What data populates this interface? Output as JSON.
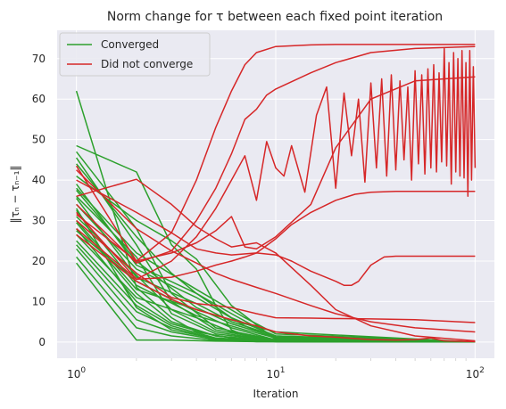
{
  "chart_data": {
    "type": "line",
    "title": "Norm change for τ between each fixed point iteration",
    "xlabel": "Iteration",
    "ylabel": "‖τₙ − τₙ₋₁‖",
    "xscale": "log",
    "xlim": [
      0.8,
      125
    ],
    "ylim": [
      -4,
      77
    ],
    "x_ticks": [
      {
        "value": 1,
        "base": "10",
        "exp": "0"
      },
      {
        "value": 10,
        "base": "10",
        "exp": "1"
      },
      {
        "value": 100,
        "base": "10",
        "exp": "2"
      }
    ],
    "y_ticks": [
      0,
      10,
      20,
      30,
      40,
      50,
      60,
      70
    ],
    "grid": true,
    "legend": {
      "placement": "top-left",
      "entries": [
        {
          "label": "Converged",
          "color": "#2ca02c"
        },
        {
          "label": "Did not converge",
          "color": "#d62728"
        }
      ]
    },
    "series": [
      {
        "group": "Converged",
        "x": [
          1,
          2,
          3,
          4,
          6,
          10,
          100
        ],
        "y": [
          62.0,
          13.5,
          6.0,
          2.5,
          1.0,
          0.2,
          0
        ]
      },
      {
        "group": "Converged",
        "x": [
          1,
          2,
          3,
          4,
          5,
          6,
          8,
          10,
          100
        ],
        "y": [
          48.5,
          42.0,
          24.0,
          18.0,
          9.0,
          3.0,
          0.5,
          0.1,
          0
        ]
      },
      {
        "group": "Converged",
        "x": [
          1,
          2,
          3,
          5,
          10,
          100
        ],
        "y": [
          47.0,
          28.0,
          12.0,
          3.5,
          0.5,
          0
        ]
      },
      {
        "group": "Converged",
        "x": [
          1,
          2,
          3,
          5,
          10,
          100
        ],
        "y": [
          45.5,
          24.0,
          10.0,
          3.0,
          0.3,
          0
        ]
      },
      {
        "group": "Converged",
        "x": [
          1,
          2,
          3,
          4,
          6,
          10,
          100
        ],
        "y": [
          41.0,
          30.0,
          25.0,
          20.5,
          9.0,
          0.6,
          0
        ]
      },
      {
        "group": "Converged",
        "x": [
          1,
          2,
          4,
          6,
          10,
          100
        ],
        "y": [
          39.0,
          19.0,
          12.0,
          7.0,
          1.0,
          0
        ]
      },
      {
        "group": "Converged",
        "x": [
          1,
          2,
          4,
          6,
          10,
          100
        ],
        "y": [
          37.5,
          20.0,
          8.5,
          4.5,
          1.2,
          0
        ]
      },
      {
        "group": "Converged",
        "x": [
          1,
          2,
          4,
          6,
          10,
          100
        ],
        "y": [
          35.5,
          16.0,
          9.5,
          5.0,
          1.5,
          0
        ]
      },
      {
        "group": "Converged",
        "x": [
          1,
          2,
          4,
          7,
          10,
          100
        ],
        "y": [
          34.0,
          18.0,
          11.0,
          4.0,
          0.8,
          0
        ]
      },
      {
        "group": "Converged",
        "x": [
          1,
          2,
          4,
          7,
          10,
          100
        ],
        "y": [
          32.5,
          14.0,
          6.5,
          3.0,
          1.0,
          0
        ]
      },
      {
        "group": "Converged",
        "x": [
          1,
          2,
          3,
          5,
          10,
          100
        ],
        "y": [
          31.0,
          16.5,
          8.0,
          2.5,
          0.2,
          0
        ]
      },
      {
        "group": "Converged",
        "x": [
          1,
          2,
          3,
          5,
          10,
          100
        ],
        "y": [
          29.5,
          12.0,
          5.0,
          1.5,
          0.1,
          0
        ]
      },
      {
        "group": "Converged",
        "x": [
          1,
          2,
          4,
          6,
          10,
          100
        ],
        "y": [
          27.5,
          15.0,
          7.5,
          3.5,
          0.5,
          0
        ]
      },
      {
        "group": "Converged",
        "x": [
          1,
          2,
          4,
          6,
          10,
          100
        ],
        "y": [
          26.5,
          11.0,
          6.0,
          2.5,
          0.4,
          0
        ]
      },
      {
        "group": "Converged",
        "x": [
          1,
          2,
          3,
          5,
          10,
          100
        ],
        "y": [
          25.0,
          9.0,
          4.0,
          1.0,
          0.2,
          0
        ]
      },
      {
        "group": "Converged",
        "x": [
          1,
          2,
          3,
          5,
          10,
          100
        ],
        "y": [
          24.0,
          7.5,
          3.5,
          0.8,
          0.1,
          0
        ]
      },
      {
        "group": "Converged",
        "x": [
          1,
          2,
          3,
          5,
          8,
          100
        ],
        "y": [
          23.0,
          5.5,
          2.5,
          0.6,
          0.1,
          0
        ]
      },
      {
        "group": "Converged",
        "x": [
          1,
          2,
          3,
          5,
          8,
          100
        ],
        "y": [
          21.0,
          3.5,
          1.5,
          0.4,
          0.1,
          0
        ]
      },
      {
        "group": "Converged",
        "x": [
          1,
          2,
          3,
          5,
          8,
          100
        ],
        "y": [
          19.5,
          0.5,
          0.5,
          0.2,
          0.1,
          0
        ]
      },
      {
        "group": "Converged",
        "x": [
          1,
          2,
          3,
          4,
          6,
          10,
          100
        ],
        "y": [
          44.0,
          26.0,
          17.0,
          12.0,
          6.0,
          1.5,
          0
        ]
      },
      {
        "group": "Converged",
        "x": [
          1,
          2,
          4,
          7,
          10,
          100
        ],
        "y": [
          38.0,
          22.0,
          13.0,
          6.0,
          2.0,
          0
        ]
      },
      {
        "group": "Converged",
        "x": [
          1,
          2,
          3,
          5,
          10,
          100
        ],
        "y": [
          36.0,
          21.0,
          7.0,
          2.0,
          0.3,
          0
        ]
      },
      {
        "group": "Converged",
        "x": [
          1,
          2,
          4,
          7,
          10,
          100
        ],
        "y": [
          30.0,
          13.0,
          8.0,
          4.5,
          2.5,
          0
        ]
      },
      {
        "group": "Converged",
        "x": [
          1,
          2,
          3,
          5,
          10,
          100
        ],
        "y": [
          28.0,
          10.0,
          4.5,
          1.5,
          0.3,
          0
        ]
      },
      {
        "group": "Converged",
        "x": [
          1,
          2,
          3,
          5,
          10,
          100
        ],
        "y": [
          33.0,
          8.5,
          3.0,
          0.8,
          0.1,
          0
        ]
      },
      {
        "group": "Did not converge",
        "x": [
          1,
          2,
          3,
          4,
          5,
          6,
          7,
          8,
          10,
          15,
          20,
          30,
          50,
          100
        ],
        "y": [
          31.5,
          20.0,
          27.0,
          40.0,
          53.0,
          62.0,
          68.5,
          71.5,
          73.0,
          73.4,
          73.5,
          73.5,
          73.5,
          73.5
        ]
      },
      {
        "group": "Did not converge",
        "x": [
          1,
          2,
          3,
          4,
          5,
          6,
          7,
          8,
          9,
          10,
          15,
          20,
          30,
          50,
          100
        ],
        "y": [
          34.0,
          19.5,
          22.5,
          30.0,
          38.0,
          46.5,
          55.0,
          57.5,
          61.0,
          62.5,
          66.5,
          69.0,
          71.5,
          72.5,
          73.0
        ]
      },
      {
        "group": "Did not converge",
        "x": [
          1,
          2,
          3,
          4,
          5,
          6,
          7,
          8,
          10,
          15,
          20,
          30,
          50,
          100
        ],
        "y": [
          43.5,
          20.0,
          22.0,
          24.5,
          27.5,
          31.0,
          23.5,
          23.0,
          26.0,
          34.0,
          48.0,
          60.0,
          64.5,
          65.5
        ]
      },
      {
        "group": "Did not converge",
        "x": [
          1,
          2,
          3,
          4,
          5,
          6,
          7,
          8,
          9,
          10,
          11,
          12,
          14,
          16,
          18,
          20,
          22,
          24,
          26,
          28,
          30,
          32,
          34,
          36,
          38,
          40,
          42,
          44,
          46,
          48,
          50,
          52,
          54,
          56,
          58,
          60,
          62,
          64,
          66,
          68,
          70,
          72,
          74,
          76,
          78,
          80,
          82,
          84,
          86,
          88,
          90,
          92,
          94,
          96,
          98,
          100
        ],
        "y": [
          32.0,
          15.5,
          20.0,
          26.0,
          33.0,
          40.0,
          46.0,
          35.0,
          49.5,
          43.0,
          41.0,
          48.5,
          37.0,
          56.0,
          63.0,
          38.0,
          61.5,
          46.0,
          60.0,
          39.5,
          64.0,
          43.0,
          65.0,
          41.0,
          66.0,
          42.5,
          64.5,
          45.0,
          63.0,
          40.0,
          67.0,
          44.0,
          66.0,
          41.5,
          67.5,
          43.0,
          68.5,
          42.0,
          66.5,
          44.5,
          72.5,
          43.5,
          69.0,
          39.0,
          71.5,
          42.0,
          70.0,
          41.0,
          72.0,
          40.5,
          69.0,
          36.0,
          72.0,
          40.0,
          68.0,
          43.0
        ]
      },
      {
        "group": "Did not converge",
        "x": [
          1,
          2,
          3,
          4,
          5,
          6,
          7,
          8,
          10,
          12,
          15,
          20,
          25,
          30,
          40,
          60,
          100
        ],
        "y": [
          28.0,
          15.5,
          16.0,
          17.5,
          19.0,
          20.0,
          21.0,
          22.0,
          25.5,
          29.0,
          32.0,
          35.0,
          36.5,
          37.0,
          37.2,
          37.2,
          37.2
        ]
      },
      {
        "group": "Did not converge",
        "x": [
          1,
          2,
          3,
          4,
          5,
          6,
          8,
          10,
          12,
          15,
          20,
          22,
          24,
          26,
          30,
          35,
          40,
          60,
          100
        ],
        "y": [
          40.0,
          32.0,
          27.0,
          23.0,
          22.0,
          21.5,
          22.0,
          21.5,
          20.0,
          17.5,
          15.0,
          14.0,
          14.0,
          15.0,
          19.0,
          21.0,
          21.2,
          21.2,
          21.2
        ]
      },
      {
        "group": "Did not converge",
        "x": [
          1,
          2,
          3,
          4,
          5,
          6,
          8,
          10,
          15,
          20,
          30,
          50,
          100
        ],
        "y": [
          42.5,
          28.0,
          22.5,
          19.5,
          17.0,
          15.5,
          13.5,
          12.0,
          9.0,
          7.0,
          5.0,
          3.5,
          2.5
        ]
      },
      {
        "group": "Did not converge",
        "x": [
          1,
          2,
          3,
          4,
          5,
          6,
          8,
          10,
          15,
          20,
          30,
          50,
          100
        ],
        "y": [
          36.0,
          40.2,
          34.0,
          28.5,
          25.5,
          23.5,
          24.5,
          22.0,
          14.0,
          8.0,
          4.0,
          1.5,
          0.3
        ]
      },
      {
        "group": "Did not converge",
        "x": [
          1,
          2,
          3,
          4,
          5,
          6,
          8,
          10,
          15,
          20,
          30,
          50,
          100
        ],
        "y": [
          30.0,
          17.0,
          11.0,
          9.5,
          9.0,
          8.5,
          7.0,
          6.0,
          5.9,
          5.8,
          5.7,
          5.5,
          4.8
        ]
      },
      {
        "group": "Did not converge",
        "x": [
          1,
          2,
          3,
          4,
          6,
          8,
          10,
          15,
          20,
          30,
          40,
          50,
          60,
          70,
          100
        ],
        "y": [
          26.5,
          15.0,
          10.5,
          8.0,
          5.5,
          4.0,
          2.5,
          1.5,
          1.2,
          0.6,
          0.5,
          0.6,
          1.0,
          0.3,
          0.1
        ]
      }
    ]
  }
}
